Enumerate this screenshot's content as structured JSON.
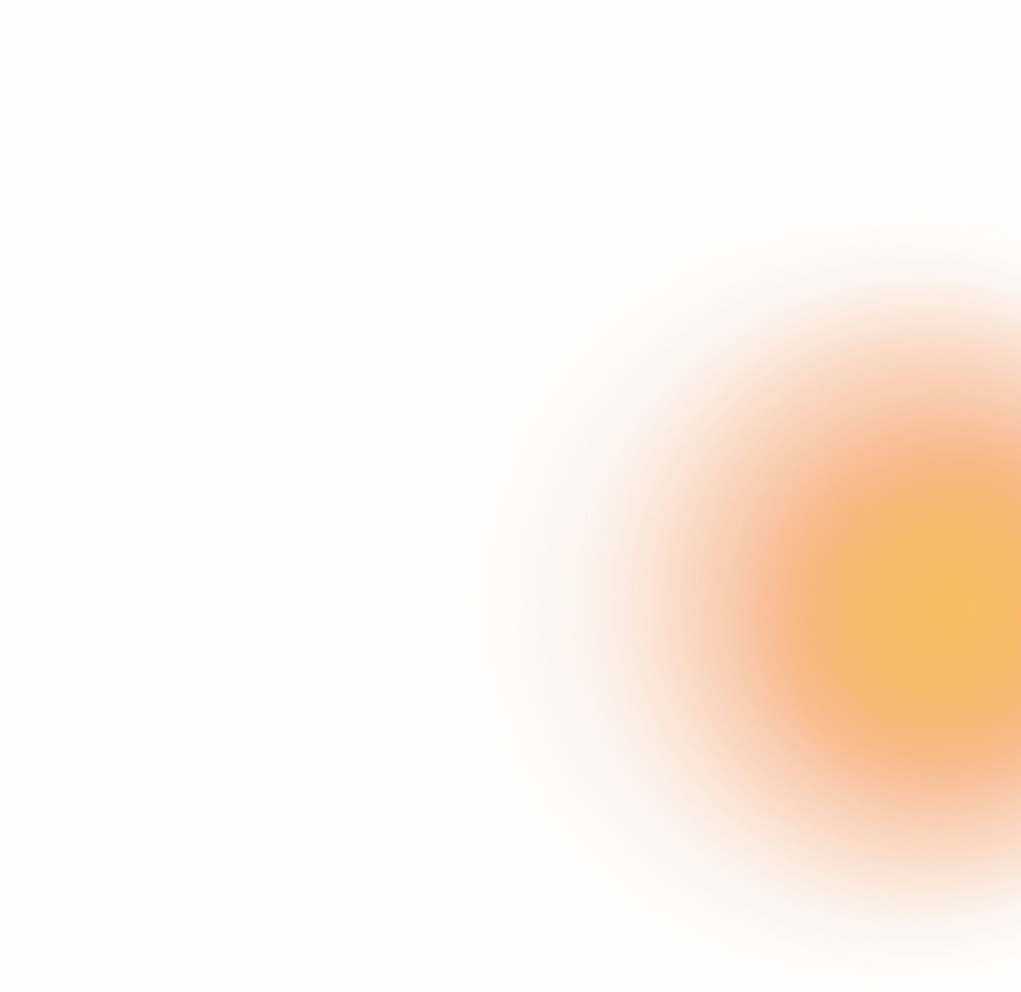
{
  "background": {
    "base_color": "#fdfdfd",
    "glow_colors": {
      "core": "#f9be5f",
      "mid": "#f5aa78",
      "edge": "#fbe4d6"
    },
    "glow_position": "bottom-right"
  }
}
